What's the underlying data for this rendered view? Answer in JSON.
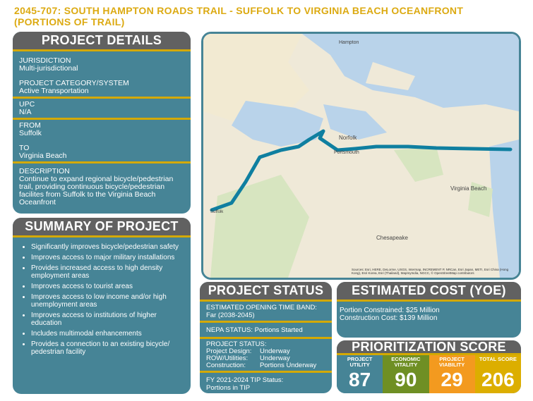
{
  "title": {
    "line1": "2045-707:  SOUTH HAMPTON ROADS TRAIL - SUFFOLK TO VIRGINIA BEACH OCEANFRONT",
    "line2": "(PORTIONS OF TRAIL)"
  },
  "details": {
    "header": "PROJECT DETAILS",
    "jurisdiction_label": "JURISDICTION",
    "jurisdiction": "Multi-jurisdictional",
    "category_label": "PROJECT CATEGORY/SYSTEM",
    "category": "Active Transportation",
    "upc_label": "UPC",
    "upc": "N/A",
    "from_label": "FROM",
    "from": "Suffolk",
    "to_label": "TO",
    "to": "Virginia Beach",
    "description_label": "DESCRIPTION",
    "description": "Continue to expand regional bicycle/pedestrian trail, providing continuous bicycle/pedestrian facilites from Suffolk to the Virginia Beach Oceanfront"
  },
  "summary": {
    "header": "SUMMARY OF PROJECT",
    "items": [
      "Significantly improves bicycle/pedestrian safety",
      "Improves access to major military installations",
      "Provides increased access to high density employment areas",
      "Improves access to tourist areas",
      "Improves access to low income and/or high unemployment areas",
      "Improves access to institutions of higher education",
      "Includes multimodal enhancements",
      "Provides a connection to an existing bicycle/ pedestrian facility"
    ]
  },
  "map": {
    "labels": {
      "hampton": "Hampton",
      "norfolk": "Norfolk",
      "portsmouth": "Portsmouth",
      "virginia_beach": "Virginia Beach",
      "chesapeake": "Chesapeake",
      "suffolk": "Suffolk"
    },
    "attribution": "Sources: Esri, HERE, DeLorme, USGS, Intermap, INCREMENT P, NRCan, Esri Japan, METI, Esri China (Hong Kong), Esri Korea, Esri (Thailand), MapmyIndia, NGCC, © OpenStreetMap contributors",
    "trail_color": "#0f7fa0"
  },
  "status": {
    "header": "PROJECT STATUS",
    "opening_label": "ESTIMATED OPENING TIME BAND:",
    "opening": "Far (2038-2045)",
    "nepa": "NEPA STATUS: Portions Started",
    "ps_label": "PROJECT STATUS:",
    "rows": [
      {
        "k": "Project Design:",
        "v": "Underway"
      },
      {
        "k": "ROW/Utilities:",
        "v": "Underway"
      },
      {
        "k": "Construction:",
        "v": "Portions Underway"
      }
    ],
    "tip_label": "FY 2021-2024 TIP Status:",
    "tip": "Portions in TIP"
  },
  "cost": {
    "header": "ESTIMATED COST (YOE)",
    "line1": "Portion Constrained: $25 Million",
    "line2": "Construction Cost: $139 Million"
  },
  "score": {
    "header": "PRIORITIZATION SCORE",
    "items": [
      {
        "label": "PROJECT UTILITY",
        "value": "87",
        "color": "#468496"
      },
      {
        "label": "ECONOMIC VITALITY",
        "value": "90",
        "color": "#6f8f24"
      },
      {
        "label": "PROJECT VIABILITY",
        "value": "29",
        "color": "#f39a1f"
      },
      {
        "label": "TOTAL SCORE",
        "value": "206",
        "color": "#dcae00"
      }
    ]
  }
}
